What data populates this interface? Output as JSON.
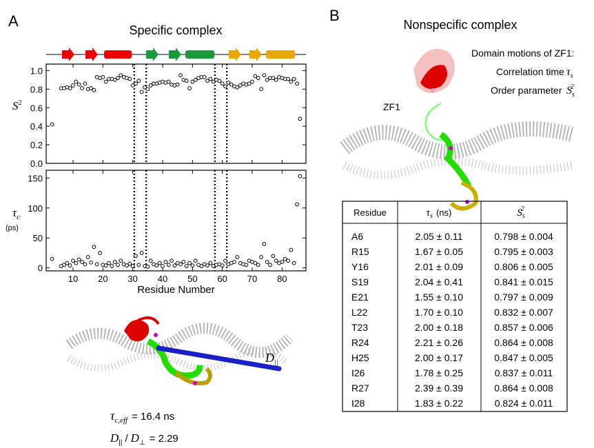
{
  "panels": {
    "a_letter": "A",
    "a_title": "Specific complex",
    "b_letter": "B",
    "b_title": "Nonspecific complex"
  },
  "chart_data": [
    {
      "type": "scatter",
      "ylabel": "S",
      "ylabel_sup": "2",
      "xlim": [
        1,
        88
      ],
      "ylim": [
        0,
        1.07
      ],
      "xticks": [
        10,
        20,
        30,
        40,
        50,
        60,
        70,
        80
      ],
      "yticks": [
        {
          "value": 0,
          "label": "0.0"
        },
        {
          "value": 0.2,
          "label": "0.2"
        },
        {
          "value": 0.4,
          "label": "0.4"
        },
        {
          "value": 0.6,
          "label": "0.6"
        },
        {
          "value": 0.8,
          "label": "0.8"
        },
        {
          "value": 1,
          "label": "1.0"
        }
      ],
      "marker_lines": [
        30.5,
        34.5,
        57.5,
        61.5
      ],
      "color": "#000000",
      "x": [
        3,
        6,
        7,
        8,
        9,
        10,
        11,
        12,
        13,
        14,
        15,
        16,
        17,
        18,
        19,
        20,
        21,
        22,
        23,
        24,
        25,
        26,
        27,
        28,
        29,
        30,
        31,
        32,
        33,
        34,
        35,
        36,
        37,
        38,
        39,
        40,
        41,
        42,
        43,
        44,
        45,
        46,
        47,
        48,
        49,
        50,
        51,
        52,
        53,
        54,
        55,
        56,
        57,
        58,
        59,
        60,
        61,
        62,
        63,
        64,
        65,
        66,
        67,
        68,
        69,
        70,
        71,
        72,
        73,
        74,
        75,
        76,
        77,
        78,
        79,
        80,
        81,
        82,
        83,
        84,
        85,
        86
      ],
      "values": [
        0.42,
        0.81,
        0.81,
        0.82,
        0.81,
        0.84,
        0.88,
        0.85,
        0.81,
        0.86,
        0.8,
        0.81,
        0.79,
        0.93,
        0.92,
        0.93,
        0.88,
        0.91,
        0.91,
        0.9,
        0.92,
        0.95,
        0.93,
        0.92,
        0.91,
        0.84,
        0.86,
        0.89,
        0.77,
        0.82,
        0.8,
        0.84,
        0.86,
        0.86,
        0.87,
        0.88,
        0.87,
        0.88,
        0.85,
        0.84,
        0.85,
        0.95,
        0.9,
        0.89,
        0.81,
        0.88,
        0.9,
        0.92,
        0.93,
        0.93,
        0.89,
        0.91,
        0.88,
        0.9,
        0.89,
        0.86,
        0.83,
        0.87,
        0.85,
        0.83,
        0.82,
        0.84,
        0.86,
        0.85,
        0.86,
        0.88,
        0.94,
        0.92,
        0.8,
        0.95,
        0.9,
        0.92,
        0.92,
        0.9,
        0.93,
        0.92,
        0.91,
        0.91,
        0.88,
        0.91,
        0.86,
        0.48
      ]
    },
    {
      "type": "scatter",
      "ylabel": "τ",
      "ylabel_sub": "c",
      "ylabel_unit": "(ps)",
      "xlabel": "Residue Number",
      "xlim": [
        1,
        88
      ],
      "ylim": [
        -5,
        163
      ],
      "xticks": [
        10,
        20,
        30,
        40,
        50,
        60,
        70,
        80
      ],
      "yticks": [
        0,
        50,
        100,
        150
      ],
      "marker_lines": [
        30.5,
        34.5,
        57.5,
        61.5
      ],
      "color": "#000000",
      "x": [
        3,
        6,
        7,
        8,
        9,
        10,
        11,
        12,
        13,
        14,
        15,
        16,
        17,
        18,
        19,
        20,
        21,
        22,
        23,
        24,
        25,
        26,
        27,
        28,
        29,
        30,
        31,
        32,
        33,
        34,
        35,
        36,
        37,
        38,
        39,
        40,
        41,
        42,
        43,
        44,
        45,
        46,
        47,
        48,
        49,
        50,
        51,
        52,
        53,
        54,
        55,
        56,
        57,
        58,
        59,
        60,
        61,
        62,
        63,
        64,
        65,
        66,
        67,
        68,
        69,
        70,
        71,
        72,
        73,
        74,
        75,
        76,
        77,
        78,
        79,
        80,
        81,
        82,
        83,
        84,
        85,
        86
      ],
      "values": [
        15,
        3,
        5,
        8,
        4,
        12,
        8,
        14,
        10,
        6,
        18,
        9,
        35,
        6,
        25,
        5,
        4,
        8,
        3,
        10,
        5,
        12,
        6,
        4,
        7,
        3,
        20,
        5,
        25,
        3,
        2,
        12,
        6,
        4,
        8,
        3,
        10,
        5,
        12,
        4,
        8,
        6,
        10,
        3,
        8,
        4,
        12,
        5,
        3,
        6,
        4,
        8,
        3,
        5,
        6,
        4,
        12,
        6,
        8,
        10,
        18,
        8,
        6,
        5,
        12,
        10,
        8,
        5,
        18,
        40,
        10,
        5,
        20,
        12,
        8,
        10,
        15,
        12,
        30,
        8,
        106,
        153
      ]
    }
  ],
  "annotations_a": {
    "d_par": "D",
    "d_par_sub": "||",
    "tau_eff": "τ",
    "tau_eff_sub": "c,eff",
    "tau_eff_value": "= 16.4 ns",
    "ratio_d1": "D",
    "ratio_d1_sub": "||",
    "ratio_slash": "/",
    "ratio_d2": "D",
    "ratio_d2_sub": "⊥",
    "ratio_value": "= 2.29"
  },
  "annotations_b": {
    "heading": "Domain motions of ZF1:",
    "corr": "Correlation time",
    "corr_sym": "τ",
    "corr_sub": "s",
    "order": "Order parameter",
    "order_sym": "S",
    "order_sub": "s",
    "order_sup": "2",
    "zf1": "ZF1"
  },
  "table": {
    "header": {
      "residue": "Residue",
      "tau": "τ",
      "tau_sub": "s",
      "tau_unit": "(ns)",
      "s": "S",
      "s_sub": "s",
      "s_sup": "2"
    },
    "rows": [
      [
        "A6",
        "2.05 ± 0.11",
        "0.798 ± 0.004"
      ],
      [
        "R15",
        "1.67 ± 0.05",
        "0.795 ± 0.003"
      ],
      [
        "Y16",
        "2.01 ± 0.09",
        "0.806 ± 0.005"
      ],
      [
        "S19",
        "2.04 ± 0.41",
        "0.841 ± 0.015"
      ],
      [
        "E21",
        "1.55 ± 0.10",
        "0.797 ± 0.009"
      ],
      [
        "L22",
        "1.70 ± 0.10",
        "0.832 ± 0.007"
      ],
      [
        "T23",
        "2.00 ± 0.18",
        "0.857 ± 0.006"
      ],
      [
        "R24",
        "2.21 ± 0.26",
        "0.864 ± 0.008"
      ],
      [
        "H25",
        "2.00 ± 0.17",
        "0.847 ± 0.005"
      ],
      [
        "I26",
        "1.78 ± 0.25",
        "0.837 ± 0.011"
      ],
      [
        "R27",
        "2.39 ± 0.39",
        "0.864 ± 0.008"
      ],
      [
        "I28",
        "1.83 ± 0.22",
        "0.824 ± 0.011"
      ]
    ]
  }
}
